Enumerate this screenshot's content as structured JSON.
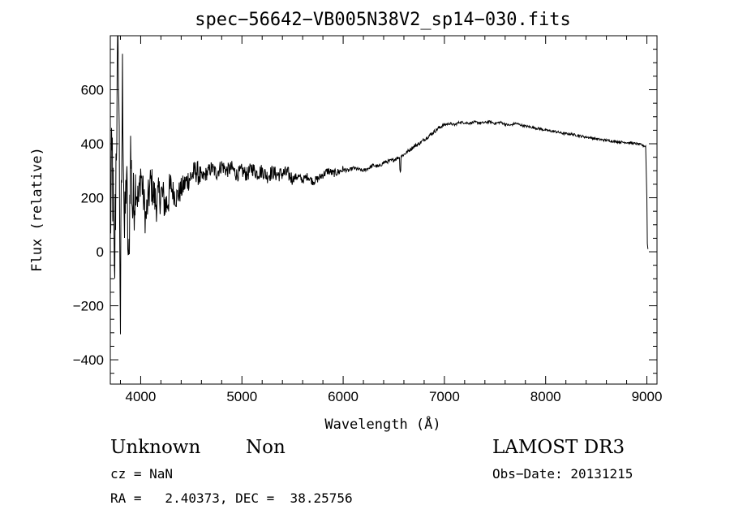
{
  "chart_data": {
    "type": "line",
    "title": "spec−56642−VB005N38V2_sp14−030.fits",
    "xlabel": "Wavelength (Å)",
    "ylabel": "Flux (relative)",
    "xlim": [
      3700,
      9100
    ],
    "ylim": [
      -490,
      800
    ],
    "x_ticks": [
      4000,
      5000,
      6000,
      7000,
      8000,
      9000
    ],
    "y_ticks": [
      -400,
      -200,
      0,
      200,
      400,
      600
    ],
    "grid": false,
    "legend": "none",
    "series": [
      {
        "x": [
          3700,
          3720,
          3740,
          3760,
          3780,
          3800,
          3820,
          3840,
          3860,
          3880,
          3900,
          3920,
          3950,
          3980,
          4000,
          4050,
          4100,
          4150,
          4200,
          4250,
          4300,
          4350,
          4400,
          4450,
          4500,
          4550,
          4600,
          4650,
          4700,
          4750,
          4800,
          4850,
          4900,
          4950,
          5000,
          5050,
          5100,
          5150,
          5200,
          5250,
          5300,
          5350,
          5400,
          5450,
          5500,
          5550,
          5600,
          5650,
          5700,
          5750,
          5800,
          5850,
          5900,
          5950,
          6000,
          6050,
          6100,
          6150,
          6200,
          6250,
          6300,
          6350,
          6400,
          6450,
          6500,
          6550,
          6600,
          6650,
          6700,
          6750,
          6800,
          6850,
          6900,
          6950,
          7000,
          7050,
          7100,
          7150,
          7200,
          7250,
          7300,
          7350,
          7400,
          7450,
          7500,
          7550,
          7600,
          7650,
          7700,
          7750,
          7800,
          7850,
          7900,
          7950,
          8000,
          8050,
          8100,
          8150,
          8200,
          8250,
          8300,
          8350,
          8400,
          8450,
          8500,
          8550,
          8600,
          8650,
          8700,
          8750,
          8800,
          8850,
          8900,
          8950,
          8990,
          9000,
          9005,
          9010
        ],
        "y": [
          100,
          350,
          -150,
          450,
          780,
          -250,
          650,
          50,
          300,
          -100,
          380,
          150,
          250,
          180,
          300,
          120,
          260,
          180,
          220,
          170,
          240,
          200,
          230,
          260,
          280,
          300,
          270,
          290,
          310,
          290,
          320,
          300,
          310,
          285,
          300,
          285,
          310,
          290,
          300,
          280,
          295,
          285,
          290,
          290,
          270,
          280,
          265,
          280,
          260,
          270,
          285,
          300,
          290,
          295,
          305,
          300,
          310,
          305,
          300,
          310,
          320,
          315,
          330,
          335,
          340,
          350,
          360,
          375,
          390,
          400,
          415,
          430,
          445,
          460,
          470,
          475,
          470,
          480,
          478,
          476,
          480,
          477,
          478,
          482,
          475,
          480,
          472,
          468,
          476,
          470,
          465,
          462,
          458,
          455,
          450,
          447,
          445,
          440,
          437,
          436,
          432,
          428,
          425,
          422,
          418,
          415,
          413,
          410,
          408,
          406,
          405,
          402,
          400,
          395,
          390,
          200,
          30,
          10
        ]
      }
    ]
  },
  "info": {
    "object_class": "Unknown",
    "object_subclass": "Non",
    "survey": "LAMOST DR3",
    "redshift": "cz = NaN",
    "obs_date": "Obs−Date: 20131215",
    "coords": "RA =   2.40373, DEC =  38.25756"
  }
}
